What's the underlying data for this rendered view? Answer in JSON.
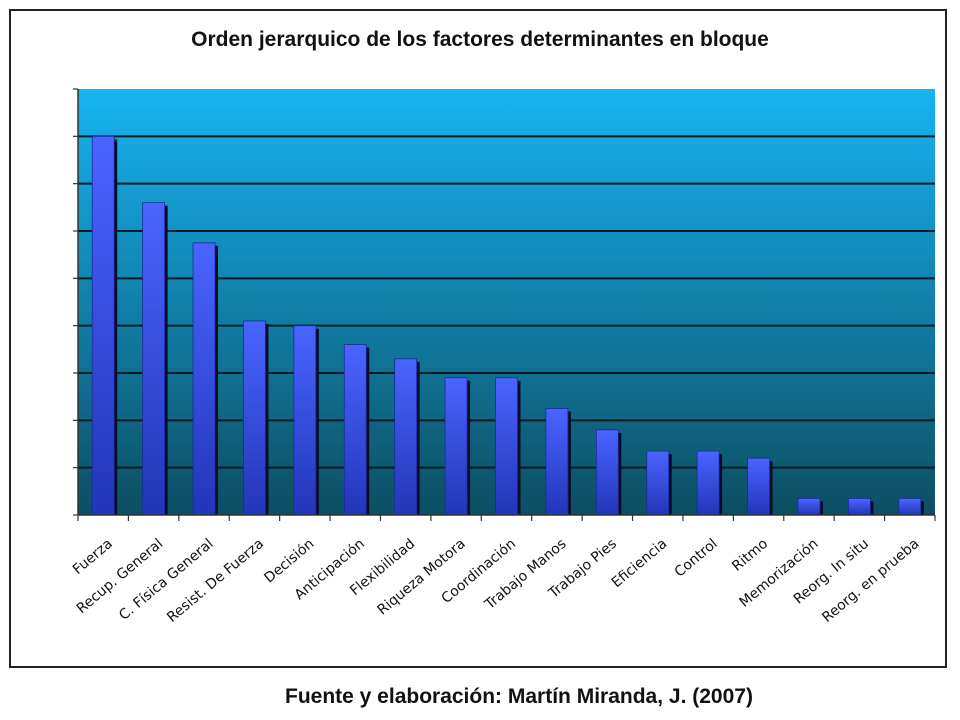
{
  "chart_data": {
    "type": "bar",
    "title": "Orden jerarquico de los factores determinantes en bloque",
    "categories": [
      "Fuerza",
      "Recup. General",
      "C. Física General",
      "Resist. De Fuerza",
      "Decisión",
      "Anticipación",
      "Flexibilidad",
      "Riqueza Motora",
      "Coordinación",
      "Trabajo Manos",
      "Trabajo Pies",
      "Eficiencia",
      "Control",
      "Ritmo",
      "Memorización",
      "Reorg. In situ",
      "Reorg. en prueba"
    ],
    "values": [
      8.0,
      6.6,
      5.75,
      4.1,
      4.0,
      3.6,
      3.3,
      2.9,
      2.9,
      2.25,
      1.8,
      1.35,
      1.35,
      1.2,
      0.35,
      0.35,
      0.35
    ],
    "ylim": [
      0,
      9
    ],
    "y_ticks_labeled": false,
    "grid": true,
    "legend": "none",
    "colors": {
      "bar": "#3a52e8",
      "bar_shadow": "#0a0a2a",
      "plot_bg_top": "#16b4f2",
      "plot_bg_bottom": "#0d4e62",
      "gridline": "#0a1a22"
    }
  },
  "caption": "Fuente y elaboración: Martín Miranda, J. (2007)"
}
